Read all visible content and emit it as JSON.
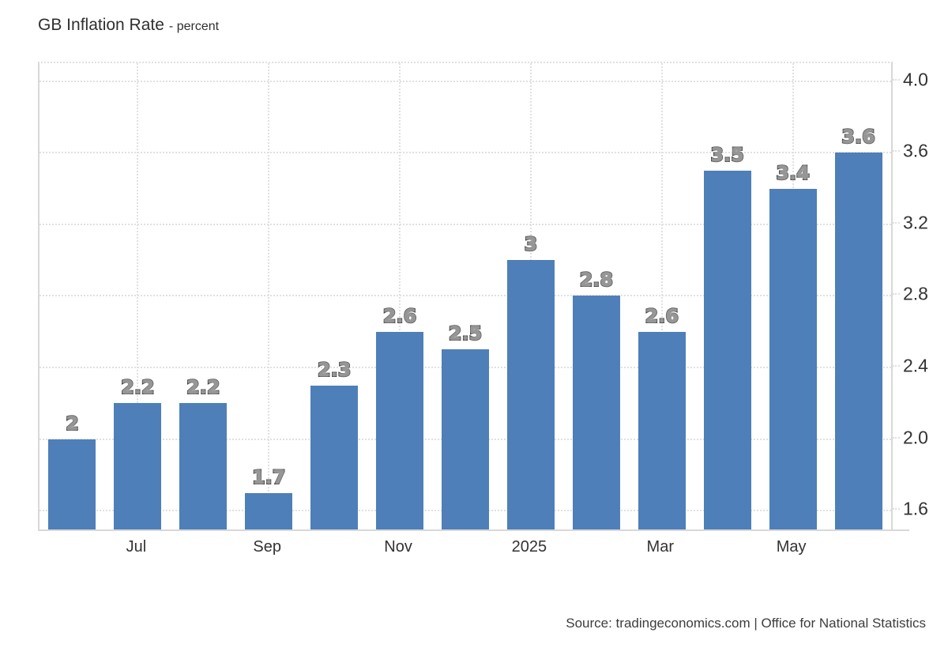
{
  "header": {
    "title": "GB Inflation Rate",
    "subtitle": "- percent"
  },
  "source": {
    "text": "Source: tradingeconomics.com | Office for National Statistics"
  },
  "chart_data": {
    "type": "bar",
    "title": "GB Inflation Rate",
    "ylabel": "percent",
    "values": [
      2,
      2.2,
      2.2,
      1.7,
      2.3,
      2.6,
      2.5,
      3,
      2.8,
      2.6,
      3.5,
      3.4,
      3.6
    ],
    "bar_labels": [
      "2",
      "2.2",
      "2.2",
      "1.7",
      "2.3",
      "2.6",
      "2.5",
      "3",
      "2.8",
      "2.6",
      "3.5",
      "3.4",
      "3.6"
    ],
    "x_ticks": [
      {
        "label": "Jul",
        "bar_index": 1
      },
      {
        "label": "Sep",
        "bar_index": 3
      },
      {
        "label": "Nov",
        "bar_index": 5
      },
      {
        "label": "2025",
        "bar_index": 7
      },
      {
        "label": "Mar",
        "bar_index": 9
      },
      {
        "label": "May",
        "bar_index": 11
      }
    ],
    "y_ticks": [
      "4.0",
      "3.6",
      "3.2",
      "2.8",
      "2.4",
      "2.0",
      "1.6"
    ],
    "y_tick_values": [
      4.0,
      3.6,
      3.2,
      2.8,
      2.4,
      2.0,
      1.6
    ],
    "ylim": [
      1.495,
      4.1
    ],
    "grid": "dotted",
    "legend": "none",
    "y_axis_side": "right",
    "colors": {
      "bar": "#4e7fb9",
      "bar_label_fill": "#969696",
      "bar_label_stroke": "#262626",
      "axis_text": "#333333",
      "grid_color": "#e0e0e0",
      "axis_line": "#d8d8d8",
      "title_color": "#2f2f2f",
      "source_color": "#3d3d3d",
      "background": "#ffffff"
    }
  }
}
